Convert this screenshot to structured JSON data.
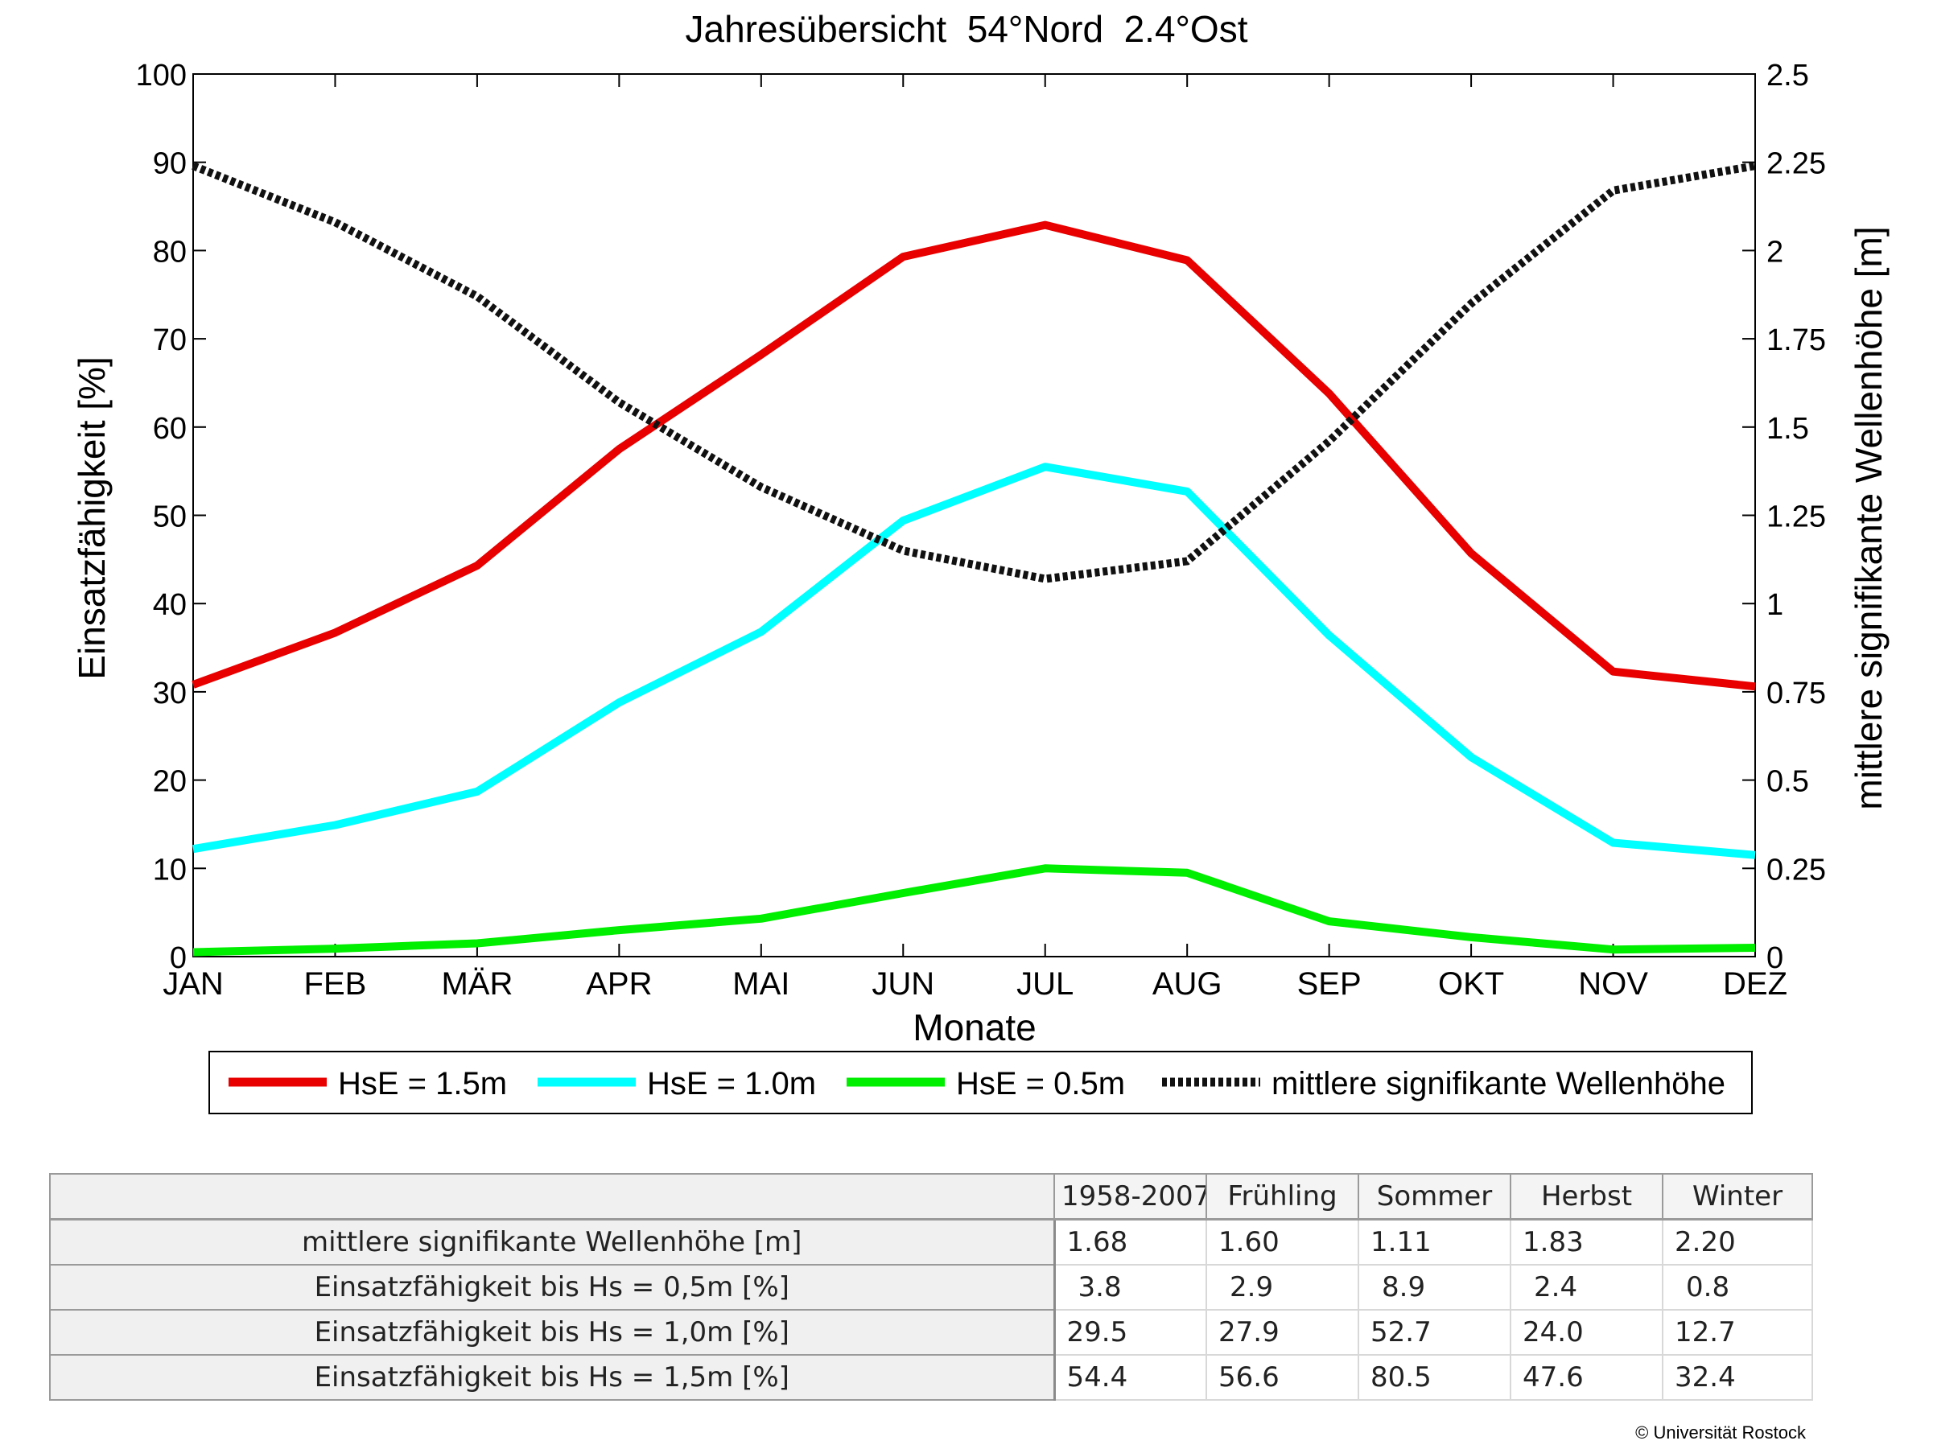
{
  "chart_data": {
    "type": "line",
    "title": "Jahresübersicht  54°Nord  2.4°Ost",
    "xlabel": "Monate",
    "ylabel": "Einsatzfähigkeit [%]",
    "y2label": "mittlere signifikante Wellenhöhe [m]",
    "categories": [
      "JAN",
      "FEB",
      "MÄR",
      "APR",
      "MAI",
      "JUN",
      "JUL",
      "AUG",
      "SEP",
      "OKT",
      "NOV",
      "DEZ"
    ],
    "ylim": [
      0,
      100
    ],
    "y2lim": [
      0,
      2.5
    ],
    "yticks": [
      "0",
      "10",
      "20",
      "30",
      "40",
      "50",
      "60",
      "70",
      "80",
      "90",
      "100"
    ],
    "y2ticks": [
      "0",
      "0.25",
      "0.5",
      "0.75",
      "1",
      "1.25",
      "1.5",
      "1.75",
      "2",
      "2.25",
      "2.5"
    ],
    "grid": false,
    "legend_position": "bottom",
    "series": [
      {
        "name": "HsE = 1.5m",
        "axis": "left",
        "color": "#e80000",
        "style": "solid",
        "values": [
          30.8,
          36.7,
          44.3,
          57.5,
          68.2,
          79.3,
          82.9,
          78.9,
          63.8,
          45.7,
          32.3,
          30.6
        ]
      },
      {
        "name": "HsE = 1.0m",
        "axis": "left",
        "color": "#00ffff",
        "style": "solid",
        "values": [
          12.2,
          14.9,
          18.7,
          28.8,
          36.8,
          49.4,
          55.5,
          52.7,
          36.4,
          22.6,
          12.9,
          11.5
        ]
      },
      {
        "name": "HsE = 0.5m",
        "axis": "left",
        "color": "#00ee00",
        "style": "solid",
        "values": [
          0.5,
          0.9,
          1.5,
          3.0,
          4.3,
          7.2,
          10.0,
          9.5,
          4.0,
          2.2,
          0.8,
          1.0
        ]
      },
      {
        "name": "mittlere signifikante Wellenhöhe",
        "axis": "right",
        "color": "#111111",
        "style": "dotted",
        "values": [
          2.24,
          2.08,
          1.87,
          1.57,
          1.33,
          1.15,
          1.07,
          1.12,
          1.46,
          1.85,
          2.17,
          2.24
        ]
      }
    ]
  },
  "table": {
    "headers": [
      "1958-2007",
      "Frühling",
      "Sommer",
      "Herbst",
      "Winter"
    ],
    "rows": [
      {
        "label": "mittlere signifikante Wellenhöhe [m]",
        "values": [
          "1.68",
          "1.60",
          "1.11",
          "1.83",
          "2.20"
        ]
      },
      {
        "label": "Einsatzfähigkeit bis Hs = 0,5m [%]",
        "values": [
          "3.8",
          "2.9",
          "8.9",
          "2.4",
          "0.8"
        ]
      },
      {
        "label": "Einsatzfähigkeit bis Hs = 1,0m [%]",
        "values": [
          "29.5",
          "27.9",
          "52.7",
          "24.0",
          "12.7"
        ]
      },
      {
        "label": "Einsatzfähigkeit bis Hs = 1,5m [%]",
        "values": [
          "54.4",
          "56.6",
          "80.5",
          "47.6",
          "32.4"
        ]
      }
    ]
  },
  "copyright": "© Universität Rostock"
}
